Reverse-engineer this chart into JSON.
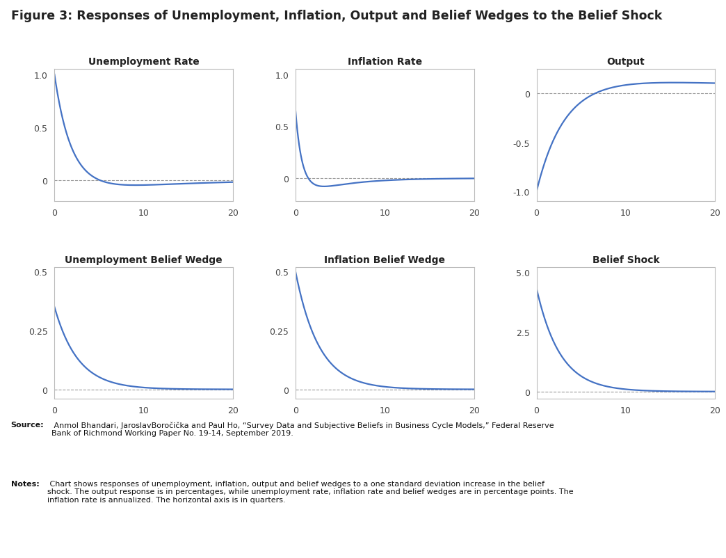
{
  "fig_title": "Figure 3: Responses of Unemployment, Inflation, Output and Belief Wedges to the Belief Shock",
  "fig_title_fontsize": 12.5,
  "fig_title_fontweight": "bold",
  "source_label": "Source:",
  "source_rest": " Anmol Bhandari, JaroslavBoročička and Paul Ho, “Survey Data and Subjective Beliefs in Business Cycle Models,” Federal Reserve\nBank of Richmond Working Paper No. 19-14, September 2019.",
  "notes_label": "Notes:",
  "notes_rest": " Chart shows responses of unemployment, inflation, output and belief wedges to a one standard deviation increase in the belief\nshock. The output response is in percentages, while unemployment rate, inflation rate and belief wedges are in percentage points. The\ninflation rate is annualized. The horizontal axis is in quarters.",
  "subplots": [
    {
      "title": "Unemployment Rate",
      "title_fontweight": "bold",
      "xlim": [
        0,
        20
      ],
      "ylim": [
        -0.2,
        1.05
      ],
      "yticks": [
        0,
        0.5,
        1.0
      ],
      "ytick_labels": [
        "0",
        "0.5",
        "1.0"
      ],
      "xticks": [
        0,
        10,
        20
      ],
      "dashed_y": 0,
      "curve_type": "unemployment"
    },
    {
      "title": "Inflation Rate",
      "title_fontweight": "bold",
      "xlim": [
        0,
        20
      ],
      "ylim": [
        -0.22,
        1.05
      ],
      "yticks": [
        0,
        0.5,
        1.0
      ],
      "ytick_labels": [
        "0",
        "0.5",
        "1.0"
      ],
      "xticks": [
        0,
        10,
        20
      ],
      "dashed_y": 0,
      "curve_type": "inflation"
    },
    {
      "title": "Output",
      "title_fontweight": "bold",
      "xlim": [
        0,
        20
      ],
      "ylim": [
        -1.1,
        0.25
      ],
      "yticks": [
        -1.0,
        -0.5,
        0
      ],
      "ytick_labels": [
        "-1.0",
        "-0.5",
        "0"
      ],
      "xticks": [
        0,
        10,
        20
      ],
      "dashed_y": 0,
      "curve_type": "output"
    },
    {
      "title": "Unemployment Belief Wedge",
      "title_fontweight": "bold",
      "xlim": [
        0,
        20
      ],
      "ylim": [
        -0.04,
        0.52
      ],
      "yticks": [
        0,
        0.25,
        0.5
      ],
      "ytick_labels": [
        "0",
        "0.25",
        "0.5"
      ],
      "xticks": [
        0,
        10,
        20
      ],
      "dashed_y": 0,
      "curve_type": "unemp_wedge"
    },
    {
      "title": "Inflation Belief Wedge",
      "title_fontweight": "bold",
      "xlim": [
        0,
        20
      ],
      "ylim": [
        -0.04,
        0.52
      ],
      "yticks": [
        0,
        0.25,
        0.5
      ],
      "ytick_labels": [
        "0",
        "0.25",
        "0.5"
      ],
      "xticks": [
        0,
        10,
        20
      ],
      "dashed_y": 0,
      "curve_type": "infl_wedge"
    },
    {
      "title": "Belief Shock",
      "title_fontweight": "bold",
      "xlim": [
        0,
        20
      ],
      "ylim": [
        -0.3,
        5.2
      ],
      "yticks": [
        0,
        2.5,
        5.0
      ],
      "ytick_labels": [
        "0",
        "2.5",
        "5.0"
      ],
      "xticks": [
        0,
        10,
        20
      ],
      "dashed_y": 0,
      "curve_type": "belief_shock"
    }
  ],
  "line_color": "#4472C4",
  "line_width": 1.6,
  "dashed_color": "#999999",
  "dashed_linewidth": 0.8,
  "background_color": "#ffffff",
  "spine_color": "#bbbbbb",
  "tick_color": "#444444",
  "title_color": "#222222",
  "text_fontsize": 8.0
}
